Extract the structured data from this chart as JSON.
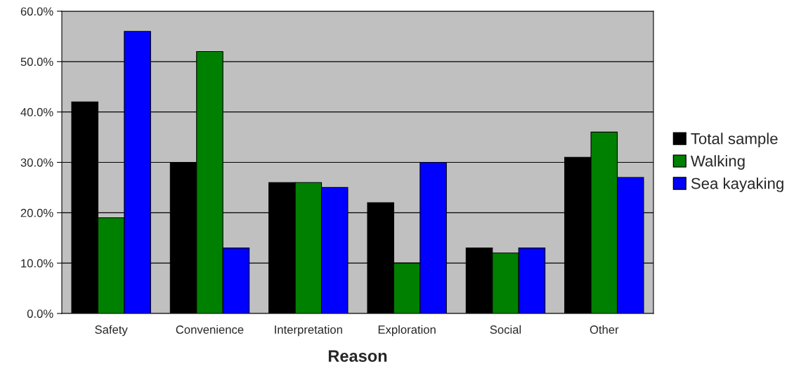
{
  "chart_data": {
    "type": "bar",
    "xlabel": "Reason",
    "categories": [
      "Safety",
      "Convenience",
      "Interpretation",
      "Exploration",
      "Social",
      "Other"
    ],
    "series": [
      {
        "name": "Total sample",
        "color": "#000000",
        "values": [
          42,
          30,
          26,
          22,
          13,
          31
        ]
      },
      {
        "name": "Walking",
        "color": "#008000",
        "values": [
          19,
          52,
          26,
          10,
          12,
          36
        ]
      },
      {
        "name": "Sea kayaking",
        "color": "#0000ff",
        "values": [
          56,
          13,
          25,
          30,
          13,
          27
        ]
      }
    ],
    "ylim": [
      0,
      60
    ],
    "yticks": [
      {
        "value": 0,
        "label": "0.0%"
      },
      {
        "value": 10,
        "label": "10.0%"
      },
      {
        "value": 20,
        "label": "20.0%"
      },
      {
        "value": 30,
        "label": "30.0%"
      },
      {
        "value": 40,
        "label": "40.0%"
      },
      {
        "value": 50,
        "label": "50.0%"
      },
      {
        "value": 60,
        "label": "60.0%"
      }
    ],
    "grid": "y",
    "legend": "right"
  }
}
